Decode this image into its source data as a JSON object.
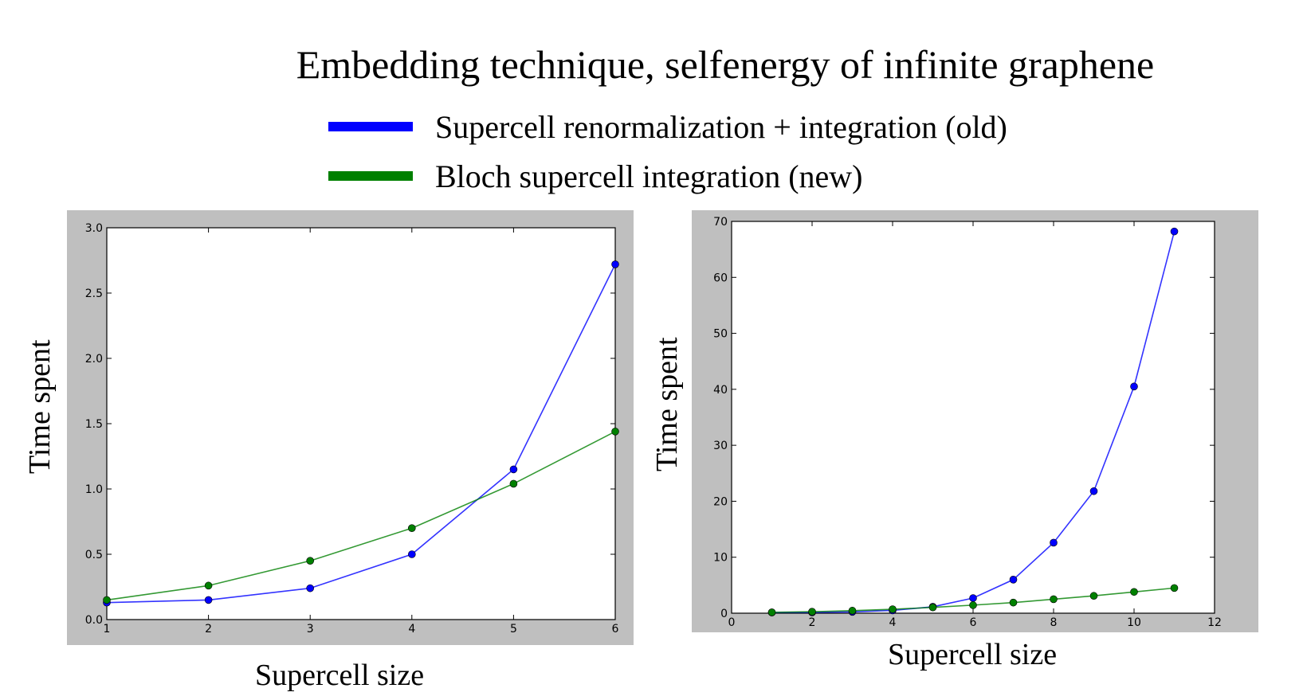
{
  "title": "Embedding technique, selfenergy of infinite graphene",
  "legend": [
    {
      "label": "Supercell renormalization + integration (old)",
      "color": "#0000ff"
    },
    {
      "label": "Bloch supercell integration (new)",
      "color": "#008000"
    }
  ],
  "chart_data": [
    {
      "type": "line",
      "xlabel": "Supercell size",
      "ylabel": "Time spent",
      "xlim": [
        1,
        6
      ],
      "ylim": [
        0.0,
        3.0
      ],
      "xticks": [
        "1",
        "2",
        "3",
        "4",
        "5",
        "6"
      ],
      "yticks": [
        "0.0",
        "0.5",
        "1.0",
        "1.5",
        "2.0",
        "2.5",
        "3.0"
      ],
      "grid": false,
      "x": [
        1,
        2,
        3,
        4,
        5,
        6
      ],
      "series": [
        {
          "name": "Supercell renormalization + integration (old)",
          "color": "#0000ff",
          "values": [
            0.13,
            0.15,
            0.24,
            0.5,
            1.15,
            2.72
          ]
        },
        {
          "name": "Bloch supercell integration (new)",
          "color": "#008000",
          "values": [
            0.15,
            0.26,
            0.45,
            0.7,
            1.04,
            1.44
          ]
        }
      ]
    },
    {
      "type": "line",
      "xlabel": "Supercell size",
      "ylabel": "Time spent",
      "xlim": [
        0,
        12
      ],
      "ylim": [
        0,
        70
      ],
      "xticks": [
        "0",
        "2",
        "4",
        "6",
        "8",
        "10",
        "12"
      ],
      "yticks": [
        "0",
        "10",
        "20",
        "30",
        "40",
        "50",
        "60",
        "70"
      ],
      "grid": false,
      "x": [
        1,
        2,
        3,
        4,
        5,
        6,
        7,
        8,
        9,
        10,
        11
      ],
      "series": [
        {
          "name": "Supercell renormalization + integration (old)",
          "color": "#0000ff",
          "values": [
            0.13,
            0.15,
            0.24,
            0.5,
            1.15,
            2.7,
            6.0,
            12.6,
            21.8,
            40.5,
            68.2
          ]
        },
        {
          "name": "Bloch supercell integration (new)",
          "color": "#008000",
          "values": [
            0.15,
            0.26,
            0.45,
            0.7,
            1.04,
            1.44,
            1.9,
            2.5,
            3.1,
            3.8,
            4.5
          ]
        }
      ]
    }
  ]
}
